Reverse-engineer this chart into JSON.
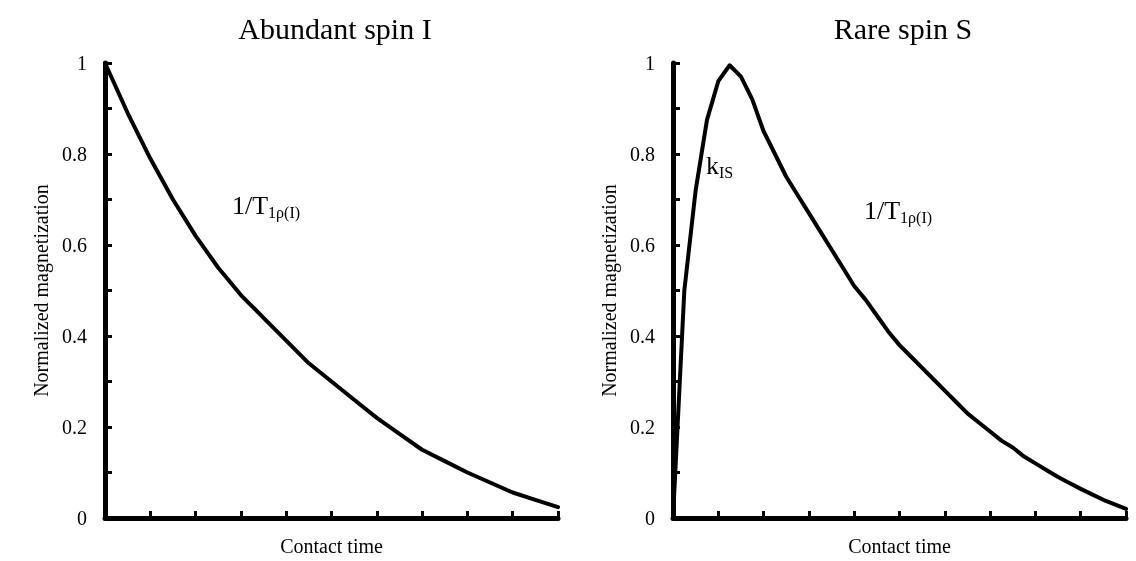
{
  "chart_data": [
    {
      "type": "line",
      "title": "Abundant spin I",
      "xlabel": "Contact time",
      "ylabel": "Normalized magnetization",
      "categories": [
        null,
        null,
        null,
        null,
        null,
        null,
        null,
        null,
        null,
        null,
        null,
        null,
        null,
        null,
        null,
        null,
        null,
        null,
        null,
        null,
        null
      ],
      "series": [
        {
          "color": "#000000",
          "values": [
            1.0,
            0.89,
            0.79,
            0.7,
            0.62,
            0.55,
            0.49,
            0.44,
            0.39,
            0.34,
            0.3,
            0.26,
            0.22,
            0.185,
            0.15,
            0.125,
            0.1,
            0.078,
            0.056,
            0.04,
            0.024
          ]
        }
      ],
      "ylim": [
        0,
        1
      ],
      "yticks": [
        0,
        {
          "value": 0.1,
          "label": null
        },
        0.2,
        {
          "value": 0.3,
          "label": null
        },
        0.4,
        {
          "value": 0.5,
          "label": null
        },
        0.6,
        {
          "value": 0.7,
          "label": null
        },
        0.8,
        {
          "value": 0.9,
          "label": null
        },
        1
      ],
      "tick_labels": "y",
      "grid": false,
      "marker": "none",
      "line_style": "solid",
      "annotations": [
        "1/T$_{1ρ(I)}$"
      ]
    },
    {
      "type": "line",
      "title": "Rare spin S",
      "xlabel": "Contact time",
      "ylabel": "Normalized magnetization",
      "categories": [
        null,
        null,
        null,
        null,
        null,
        null,
        null,
        null,
        null,
        null,
        null,
        null,
        null,
        null,
        null,
        null,
        null,
        null,
        null,
        null,
        null,
        null,
        null,
        null,
        null,
        null,
        null,
        null,
        null,
        null,
        null,
        null,
        null,
        null,
        null,
        null,
        null,
        null,
        null,
        null,
        null
      ],
      "series": [
        {
          "color": "#000000",
          "values": [
            0,
            0.5,
            0.72,
            0.875,
            0.96,
            0.995,
            0.97,
            0.92,
            0.85,
            0.8,
            0.75,
            0.71,
            0.67,
            0.63,
            0.59,
            0.55,
            0.51,
            0.48,
            0.445,
            0.41,
            0.38,
            0.355,
            0.33,
            0.305,
            0.28,
            0.255,
            0.23,
            0.21,
            0.19,
            0.17,
            0.155,
            0.135,
            0.12,
            0.105,
            0.09,
            0.077,
            0.064,
            0.052,
            0.04,
            0.03,
            0.02
          ]
        }
      ],
      "ylim": [
        0,
        1
      ],
      "yticks": [
        0,
        {
          "value": 0.1,
          "label": null
        },
        0.2,
        {
          "value": 0.3,
          "label": null
        },
        0.4,
        {
          "value": 0.5,
          "label": null
        },
        0.6,
        {
          "value": 0.7,
          "label": null
        },
        0.8,
        {
          "value": 0.9,
          "label": null
        },
        1
      ],
      "tick_labels": "y",
      "grid": false,
      "marker": "none",
      "line_style": "solid",
      "annotations": [
        "k$_{IS}$",
        "1/T$_{1ρ(I)}$"
      ]
    }
  ]
}
